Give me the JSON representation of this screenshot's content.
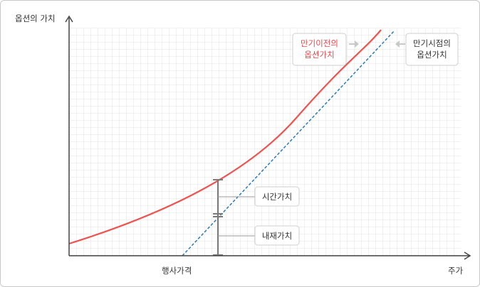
{
  "axes": {
    "y_label": "옵션의 가치",
    "x_label": "주가",
    "strike_label": "행사가격"
  },
  "callouts": {
    "before_expiry": [
      "만기이전의",
      "옵션가치"
    ],
    "at_expiry": [
      "만기시점의",
      "옵션가치"
    ],
    "time_value": "시간가치",
    "intrinsic_value": "내재가치"
  },
  "colors": {
    "before_expiry_curve": "#ef5350",
    "at_expiry_line": "#2a7ab8",
    "axis": "#444444",
    "grid": "#e4e4e4"
  }
}
